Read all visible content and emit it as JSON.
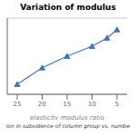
{
  "chart_data": {
    "type": "line",
    "title": "Variation of modulus",
    "x_label": "elasticity modulus ratio",
    "caption": "ion in subsidence of column group vs. numbe",
    "x": [
      25,
      20,
      15,
      10,
      7,
      5
    ],
    "values": [
      0.5,
      1.0,
      1.35,
      1.65,
      1.9,
      2.15
    ],
    "color": "#4472c4",
    "marker": "triangle",
    "xlim": [
      27,
      3
    ],
    "xticks": [
      25,
      20,
      15,
      10,
      5
    ],
    "ylim": [
      0.2,
      2.5
    ],
    "yticks": [
      0.5,
      1.0,
      1.5,
      2.0,
      2.5
    ],
    "grid": true,
    "tick_labels": "x"
  }
}
